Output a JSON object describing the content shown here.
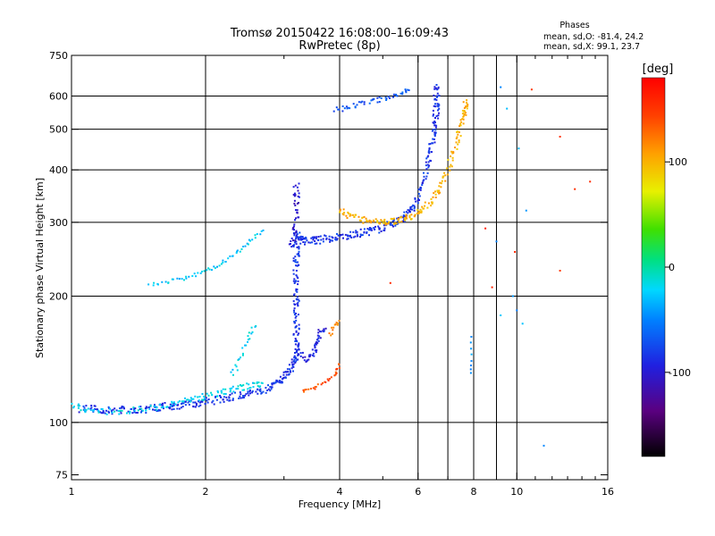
{
  "chart_data": {
    "type": "scatter",
    "title": "Tromsø 20150422 16:08:00–16:09:43",
    "subtitle": "RwPretec (8p)",
    "stats": {
      "heading": "Phases",
      "o_line": "mean, sd,O: -81.4, 24.2",
      "x_line": "mean, sd,X:  99.1, 23.7"
    },
    "xlabel": "Frequency [MHz]",
    "ylabel": "Stationary phase Virtual Height [km]",
    "x_scale": "log",
    "y_scale": "log",
    "xlim": [
      1,
      16
    ],
    "ylim": [
      73,
      750
    ],
    "x_ticks": [
      1,
      2,
      4,
      6,
      8,
      10,
      16
    ],
    "x_tick_labels": [
      "1",
      "2",
      "4",
      "6",
      "8",
      "10",
      "16"
    ],
    "x_minor_ticks": [
      3,
      5,
      7,
      9,
      11,
      12,
      13,
      14,
      15
    ],
    "y_ticks": [
      75,
      100,
      200,
      300,
      400,
      500,
      600,
      750
    ],
    "y_tick_labels": [
      "75",
      "100",
      "200",
      "300",
      "400",
      "500",
      "600",
      "750"
    ],
    "x_grid": [
      2,
      4,
      6,
      8,
      10
    ],
    "x_grid_extra": [
      7,
      9
    ],
    "y_grid": [
      100,
      200,
      300,
      400,
      500,
      600
    ],
    "colorbar": {
      "label": "[deg]",
      "range": [
        -180,
        180
      ],
      "ticks": [
        100,
        0,
        -100
      ],
      "tick_labels": [
        "100",
        "0",
        "-100"
      ]
    },
    "series": [
      {
        "note_phase": -85,
        "points": [
          [
            1.05,
            108
          ],
          [
            1.2,
            107
          ],
          [
            1.4,
            107
          ],
          [
            1.6,
            109
          ],
          [
            1.8,
            110
          ],
          [
            2.0,
            112
          ],
          [
            2.3,
            115
          ],
          [
            2.6,
            118
          ],
          [
            2.9,
            124
          ],
          [
            3.1,
            132
          ],
          [
            3.2,
            145
          ],
          [
            3.2,
            170
          ],
          [
            3.2,
            200
          ],
          [
            3.2,
            240
          ],
          [
            3.2,
            280
          ],
          [
            3.3,
            270
          ],
          [
            3.6,
            272
          ],
          [
            4.0,
            278
          ],
          [
            4.5,
            283
          ],
          [
            5.0,
            290
          ],
          [
            5.5,
            305
          ],
          [
            5.9,
            330
          ],
          [
            6.3,
            400
          ],
          [
            6.5,
            480
          ],
          [
            6.6,
            560
          ],
          [
            6.6,
            640
          ]
        ],
        "jitter": 0.03,
        "density": 26
      },
      {
        "note_phase": -105,
        "points": [
          [
            3.1,
            260
          ],
          [
            3.2,
            300
          ],
          [
            3.2,
            340
          ],
          [
            3.2,
            370
          ]
        ],
        "jitter": 0.03,
        "density": 14
      },
      {
        "note_phase": -95,
        "points": [
          [
            3.2,
            150
          ],
          [
            3.4,
            140
          ],
          [
            3.5,
            150
          ],
          [
            3.6,
            160
          ],
          [
            3.7,
            170
          ]
        ],
        "jitter": 0.03,
        "density": 14
      },
      {
        "note_phase": -70,
        "points": [
          [
            3.9,
            555
          ],
          [
            4.3,
            570
          ],
          [
            4.8,
            585
          ],
          [
            5.3,
            600
          ],
          [
            5.8,
            625
          ]
        ],
        "jitter": 0.02,
        "density": 12
      },
      {
        "note_phase": -20,
        "points": [
          [
            1.0,
            110
          ],
          [
            1.1,
            106
          ],
          [
            1.3,
            106
          ],
          [
            1.5,
            108
          ],
          [
            1.7,
            111
          ],
          [
            1.9,
            114
          ],
          [
            2.1,
            117
          ],
          [
            2.3,
            120
          ],
          [
            2.5,
            122
          ],
          [
            2.7,
            124
          ]
        ],
        "jitter": 0.025,
        "density": 14
      },
      {
        "note_phase": -25,
        "points": [
          [
            1.5,
            213
          ],
          [
            1.7,
            218
          ],
          [
            1.9,
            225
          ],
          [
            2.1,
            235
          ],
          [
            2.3,
            248
          ],
          [
            2.5,
            268
          ],
          [
            2.7,
            290
          ]
        ],
        "jitter": 0.015,
        "density": 10
      },
      {
        "note_phase": -20,
        "points": [
          [
            2.3,
            130
          ],
          [
            2.4,
            142
          ],
          [
            2.5,
            160
          ],
          [
            2.6,
            170
          ]
        ],
        "jitter": 0.02,
        "density": 8
      },
      {
        "note_phase": 100,
        "points": [
          [
            4.0,
            320
          ],
          [
            4.4,
            305
          ],
          [
            4.9,
            300
          ],
          [
            5.4,
            303
          ],
          [
            5.9,
            310
          ],
          [
            6.4,
            335
          ],
          [
            6.9,
            380
          ],
          [
            7.3,
            460
          ],
          [
            7.6,
            540
          ],
          [
            7.7,
            580
          ]
        ],
        "jitter": 0.025,
        "density": 20
      },
      {
        "note_phase": 140,
        "points": [
          [
            3.3,
            118
          ],
          [
            3.6,
            122
          ],
          [
            3.9,
            130
          ],
          [
            4.0,
            138
          ]
        ],
        "jitter": 0.015,
        "density": 10
      },
      {
        "note_phase": 115,
        "points": [
          [
            3.8,
            160
          ],
          [
            3.9,
            170
          ],
          [
            4.0,
            175
          ]
        ],
        "jitter": 0.015,
        "density": 6
      },
      {
        "note_phase": -50,
        "points": [
          [
            7.9,
            160
          ],
          [
            7.9,
            140
          ],
          [
            7.9,
            128
          ]
        ],
        "jitter": 0.005,
        "density": 4
      },
      {
        "note_phase": -40,
        "points": [
          [
            9.2,
            630
          ],
          [
            9.5,
            560
          ],
          [
            10.1,
            450
          ],
          [
            10.5,
            320
          ],
          [
            9.8,
            200
          ],
          [
            10.0,
            185
          ],
          [
            10.3,
            172
          ],
          [
            11.5,
            88
          ],
          [
            9.2,
            180
          ],
          [
            9.0,
            270
          ]
        ],
        "jitter": 0.01,
        "density": 1
      },
      {
        "note_phase": 160,
        "points": [
          [
            10.8,
            622
          ],
          [
            12.5,
            480
          ],
          [
            14.6,
            375
          ],
          [
            12.5,
            230
          ],
          [
            8.5,
            290
          ],
          [
            8.8,
            210
          ],
          [
            5.2,
            215
          ],
          [
            13.5,
            360
          ],
          [
            9.9,
            255
          ]
        ],
        "jitter": 0.01,
        "density": 1
      }
    ]
  }
}
